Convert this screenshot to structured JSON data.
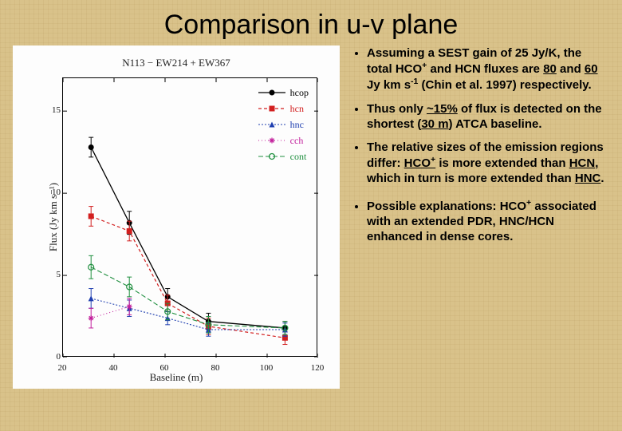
{
  "title": "Comparison in u-v plane",
  "chart": {
    "type": "line-scatter",
    "title": "N113 − EW214 + EW367",
    "xlabel": "Baseline (m)",
    "ylabel": "Flux (Jy km s⁻¹)",
    "background_color": "#fdfdfd",
    "axis_color": "#000000",
    "xlim": [
      20,
      120
    ],
    "ylim": [
      0,
      17
    ],
    "xticks": [
      20,
      40,
      60,
      80,
      100,
      120
    ],
    "yticks": [
      0,
      5,
      10,
      15
    ],
    "tick_fontsize": 11,
    "label_fontsize": 13,
    "series": [
      {
        "name": "hcop",
        "label": "hcop",
        "color": "#000000",
        "marker": "circle-filled",
        "dash": "none",
        "linewidth": 1.3,
        "points": [
          {
            "x": 31,
            "y": 12.8,
            "err": 0.6
          },
          {
            "x": 46,
            "y": 8.2,
            "err": 0.7
          },
          {
            "x": 61,
            "y": 3.7,
            "err": 0.5
          },
          {
            "x": 77,
            "y": 2.2,
            "err": 0.5
          },
          {
            "x": 107,
            "y": 1.8,
            "err": 0.4
          }
        ]
      },
      {
        "name": "hcn",
        "label": "hcn",
        "color": "#d21f1f",
        "marker": "square-filled",
        "dash": "4 3",
        "linewidth": 1.2,
        "points": [
          {
            "x": 31,
            "y": 8.6,
            "err": 0.6
          },
          {
            "x": 46,
            "y": 7.7,
            "err": 0.6
          },
          {
            "x": 61,
            "y": 3.3,
            "err": 0.5
          },
          {
            "x": 77,
            "y": 1.9,
            "err": 0.5
          },
          {
            "x": 107,
            "y": 1.2,
            "err": 0.4
          }
        ]
      },
      {
        "name": "hnc",
        "label": "hnc",
        "color": "#1f3fb0",
        "marker": "triangle-filled",
        "dash": "2 2",
        "linewidth": 1.1,
        "points": [
          {
            "x": 31,
            "y": 3.6,
            "err": 0.6
          },
          {
            "x": 46,
            "y": 3.0,
            "err": 0.5
          },
          {
            "x": 61,
            "y": 2.4,
            "err": 0.4
          },
          {
            "x": 77,
            "y": 1.7,
            "err": 0.4
          },
          {
            "x": 107,
            "y": 1.7,
            "err": 0.4
          }
        ]
      },
      {
        "name": "cch",
        "label": "cch",
        "color": "#c21f9c",
        "marker": "star",
        "dash": "1 3",
        "linewidth": 1.1,
        "points": [
          {
            "x": 31,
            "y": 2.4,
            "err": 0.6
          },
          {
            "x": 46,
            "y": 3.1,
            "err": 0.5
          }
        ]
      },
      {
        "name": "cont",
        "label": "cont",
        "color": "#1f8f3f",
        "marker": "circle-open",
        "dash": "6 3",
        "linewidth": 1.1,
        "points": [
          {
            "x": 31,
            "y": 5.5,
            "err": 0.7
          },
          {
            "x": 46,
            "y": 4.3,
            "err": 0.6
          },
          {
            "x": 61,
            "y": 2.8,
            "err": 0.5
          },
          {
            "x": 77,
            "y": 2.0,
            "err": 0.5
          },
          {
            "x": 107,
            "y": 1.8,
            "err": 0.4
          }
        ]
      }
    ],
    "legend_position": "top-right"
  },
  "bullets": [
    "Assuming a SEST gain of 25 Jy/K, the total HCO⁺ and HCN fluxes are <span class='u'>80</span> and <span class='u'>60</span> Jy km s⁻¹ (Chin et al. 1997) respectively.",
    "Thus only <span class='u'>~15%</span> of flux is detected on the shortest (<span class='u'>30 m</span>) ATCA baseline.",
    "The relative sizes of the emission regions differ: <span class='u'>HCO⁺</span> is more extended than <span class='u'>HCN</span>, which in turn is more extended than <span class='u'>HNC</span>.",
    "Possible explanations: HCO⁺ associated with an extended PDR, HNC/HCN enhanced in dense cores."
  ],
  "slide_background": "#d9c28a"
}
